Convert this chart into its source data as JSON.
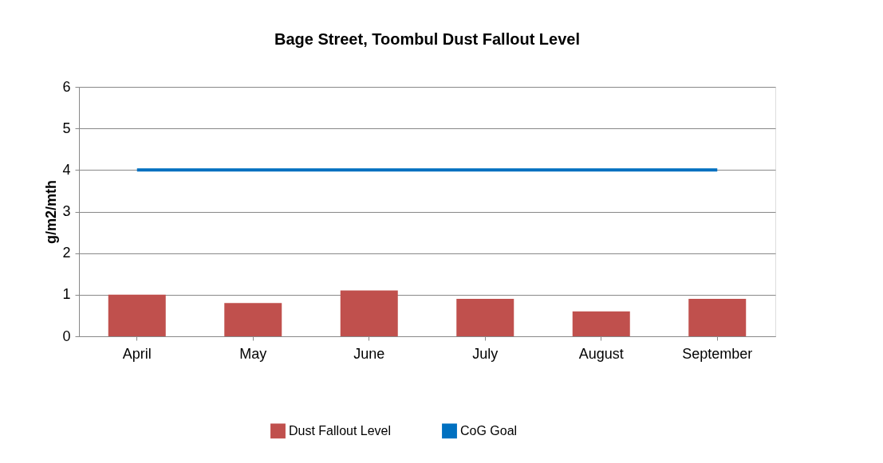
{
  "chart_data": {
    "type": "bar",
    "title": "Bage Street, Toombul Dust Fallout Level",
    "ylabel": "g/m2/mth",
    "categories": [
      "April",
      "May",
      "June",
      "July",
      "August",
      "September"
    ],
    "series": [
      {
        "name": "Dust Fallout Level",
        "color": "#c0504d",
        "values": [
          1.0,
          0.8,
          1.1,
          0.9,
          0.6,
          0.9
        ]
      },
      {
        "name": "CoG Goal",
        "color": "#0070c0",
        "type": "line",
        "values": [
          4,
          4,
          4,
          4,
          4,
          4
        ]
      }
    ],
    "ylim": [
      0,
      6
    ],
    "yticks": [
      0,
      1,
      2,
      3,
      4,
      5,
      6
    ],
    "grid": "y",
    "legend": "bottom"
  }
}
